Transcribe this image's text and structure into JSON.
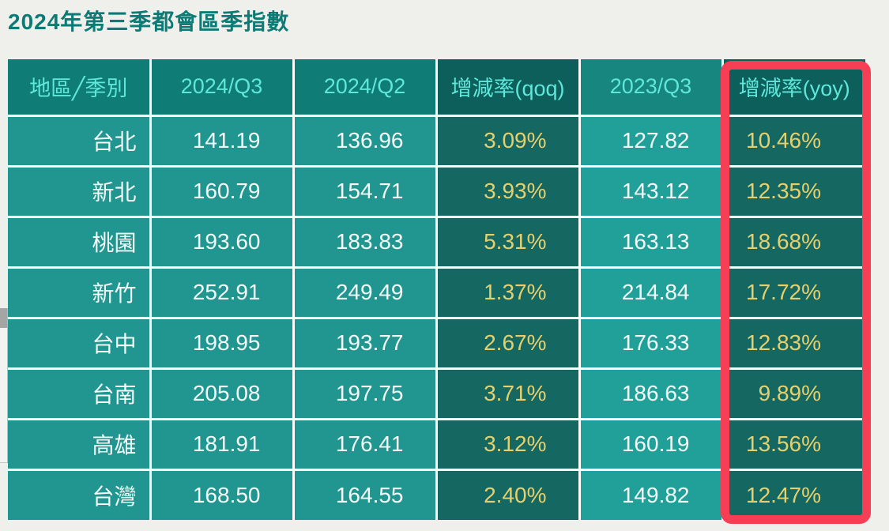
{
  "page": {
    "title": "2024年第三季都會區季指數"
  },
  "table": {
    "columns": [
      {
        "key": "region",
        "label": "地區╱季別",
        "type": "normal"
      },
      {
        "key": "q3_2024",
        "label": "2024/Q3",
        "type": "normal"
      },
      {
        "key": "q2_2024",
        "label": "2024/Q2",
        "type": "normal"
      },
      {
        "key": "qoq",
        "label": "增減率(qoq)",
        "type": "rate"
      },
      {
        "key": "q3_2023",
        "label": "2023/Q3",
        "type": "light"
      },
      {
        "key": "yoy",
        "label": "增減率(yoy)",
        "type": "rate"
      }
    ],
    "rows": [
      {
        "region": "台北",
        "q3_2024": "141.19",
        "q2_2024": "136.96",
        "qoq": "3.09%",
        "q3_2023": "127.82",
        "yoy": "10.46%"
      },
      {
        "region": "新北",
        "q3_2024": "160.79",
        "q2_2024": "154.71",
        "qoq": "3.93%",
        "q3_2023": "143.12",
        "yoy": "12.35%"
      },
      {
        "region": "桃園",
        "q3_2024": "193.60",
        "q2_2024": "183.83",
        "qoq": "5.31%",
        "q3_2023": "163.13",
        "yoy": "18.68%"
      },
      {
        "region": "新竹",
        "q3_2024": "252.91",
        "q2_2024": "249.49",
        "qoq": "1.37%",
        "q3_2023": "214.84",
        "yoy": "17.72%"
      },
      {
        "region": "台中",
        "q3_2024": "198.95",
        "q2_2024": "193.77",
        "qoq": "2.67%",
        "q3_2023": "176.33",
        "yoy": "12.83%"
      },
      {
        "region": "台南",
        "q3_2024": "205.08",
        "q2_2024": "197.75",
        "qoq": "3.71%",
        "q3_2023": "186.63",
        "yoy": "9.89%"
      },
      {
        "region": "高雄",
        "q3_2024": "181.91",
        "q2_2024": "176.41",
        "qoq": "3.12%",
        "q3_2023": "160.19",
        "yoy": "13.56%"
      },
      {
        "region": "台灣",
        "q3_2024": "168.50",
        "q2_2024": "164.55",
        "qoq": "2.40%",
        "q3_2023": "149.82",
        "yoy": "12.47%"
      }
    ]
  },
  "highlight": {
    "highlighted_column": "增減率(yoy)",
    "color": "#f63e55"
  },
  "colors": {
    "page_background": "#efefec",
    "title_text": "#0c7b75",
    "header_normal_bg": "#0f7c76",
    "header_light_bg": "#16867f",
    "header_rate_bg": "#0c5f5a",
    "header_text": "#5fe7da",
    "body_normal_bg": "#21958f",
    "body_light_bg": "#21a09a",
    "body_rate_bg": "#156861",
    "body_text": "#f3fcfa",
    "rate_text": "#e5d06d",
    "grid_line": "#ffffff"
  },
  "chart_data": {
    "type": "table",
    "title": "2024年第三季都會區季指數",
    "columns": [
      "地區╱季別",
      "2024/Q3",
      "2024/Q2",
      "增減率(qoq)",
      "2023/Q3",
      "增減率(yoy)"
    ],
    "rows": [
      [
        "台北",
        141.19,
        136.96,
        "3.09%",
        127.82,
        "10.46%"
      ],
      [
        "新北",
        160.79,
        154.71,
        "3.93%",
        143.12,
        "12.35%"
      ],
      [
        "桃園",
        193.6,
        183.83,
        "5.31%",
        163.13,
        "18.68%"
      ],
      [
        "新竹",
        252.91,
        249.49,
        "1.37%",
        214.84,
        "17.72%"
      ],
      [
        "台中",
        198.95,
        193.77,
        "2.67%",
        176.33,
        "12.83%"
      ],
      [
        "台南",
        205.08,
        197.75,
        "3.71%",
        186.63,
        "9.89%"
      ],
      [
        "高雄",
        181.91,
        176.41,
        "3.12%",
        160.19,
        "13.56%"
      ],
      [
        "台灣",
        168.5,
        164.55,
        "2.40%",
        149.82,
        "12.47%"
      ]
    ],
    "layout_hints": {
      "highlighted_column": "增減率(yoy)",
      "rate_columns_dark_bg_yellow_text": [
        "增減率(qoq)",
        "增減率(yoy)"
      ],
      "grid": "white separators on teal cells"
    }
  }
}
